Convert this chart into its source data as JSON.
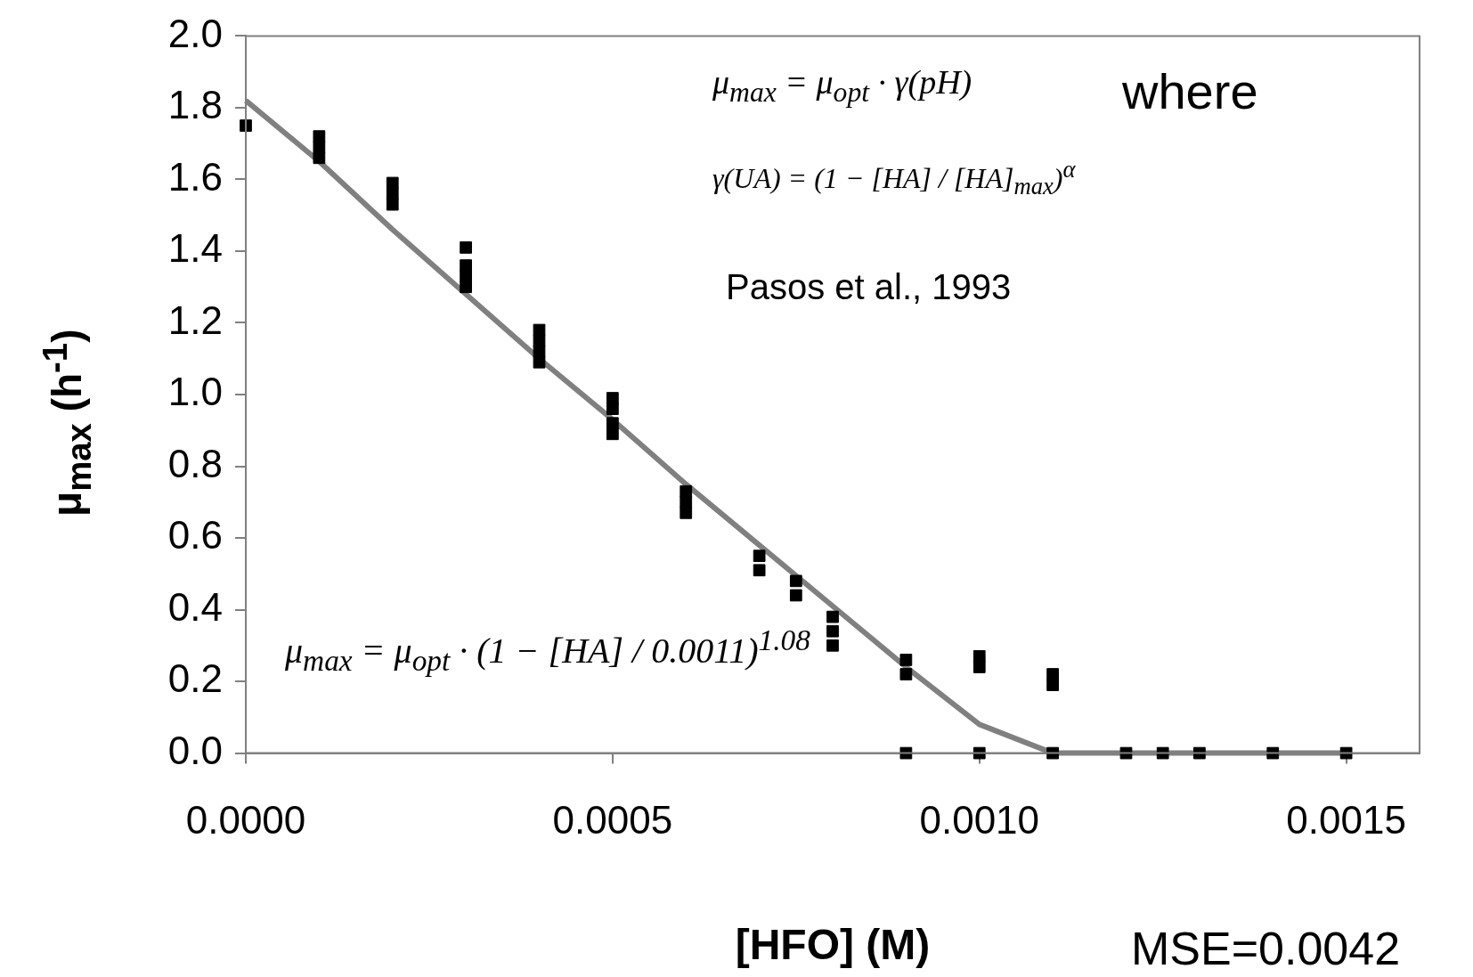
{
  "chart_data": {
    "type": "scatter",
    "xlabel": "[HFO] (M)",
    "ylabel": "μ$_{max}$ (h$^{-1}$)",
    "xlim": [
      0,
      0.0016
    ],
    "ylim": [
      0,
      2
    ],
    "xticks": [
      {
        "value": 0,
        "label": "0.0000"
      },
      {
        "value": 0.0005,
        "label": "0.0005"
      },
      {
        "value": 0.001,
        "label": "0.0010"
      },
      {
        "value": 0.0015,
        "label": "0.0015"
      }
    ],
    "yticks": [
      {
        "value": 0,
        "label": "0.0"
      },
      {
        "value": 0.2,
        "label": "0.2"
      },
      {
        "value": 0.4,
        "label": "0.4"
      },
      {
        "value": 0.6,
        "label": "0.6"
      },
      {
        "value": 0.8,
        "label": "0.8"
      },
      {
        "value": 1,
        "label": "1.0"
      },
      {
        "value": 1.2,
        "label": "1.2"
      },
      {
        "value": 1.4,
        "label": "1.4"
      },
      {
        "value": 1.6,
        "label": "1.6"
      },
      {
        "value": 1.8,
        "label": "1.8"
      },
      {
        "value": 2,
        "label": "2.0"
      }
    ],
    "grid": false,
    "legend": false,
    "series": [
      {
        "type": "line",
        "color": "#808080",
        "marker": "none",
        "line_style": "solid",
        "x": [
          0,
          0.0001,
          0.0002,
          0.0003,
          0.0004,
          0.0005,
          0.0006,
          0.0007,
          0.0008,
          0.0009,
          0.001,
          0.0011,
          0.0015
        ],
        "values": [
          1.82,
          1.65,
          1.46,
          1.28,
          1.1,
          0.93,
          0.75,
          0.58,
          0.41,
          0.24,
          0.08,
          0,
          0
        ]
      },
      {
        "color": "#000000",
        "marker": "square",
        "x": [
          0,
          0.0001,
          0.0001,
          0.0001,
          0.0002,
          0.0002,
          0.0002,
          0.0003,
          0.0003,
          0.0003,
          0.0003,
          0.0004,
          0.0004,
          0.0004,
          0.0004,
          0.0005,
          0.0005,
          0.0005,
          0.0005,
          0.0006,
          0.0006,
          0.0006,
          0.0007,
          0.0007,
          0.00075,
          0.00075,
          0.0008,
          0.0008,
          0.0008,
          0.0009,
          0.0009,
          0.0009,
          0.001,
          0.001,
          0.001,
          0.0011,
          0.0011,
          0.0011,
          0.0012,
          0.00125,
          0.0013,
          0.0014,
          0.0015
        ],
        "values": [
          1.75,
          1.66,
          1.69,
          1.72,
          1.53,
          1.56,
          1.59,
          1.41,
          1.3,
          1.33,
          1.36,
          1.09,
          1.12,
          1.15,
          1.18,
          0.89,
          0.92,
          0.96,
          0.99,
          0.67,
          0.7,
          0.73,
          0.51,
          0.55,
          0.44,
          0.48,
          0.3,
          0.34,
          0.38,
          0.22,
          0.26,
          0,
          0.24,
          0.27,
          0,
          0.19,
          0.22,
          0,
          0,
          0,
          0,
          0,
          0
        ]
      }
    ],
    "annotations": [
      "μ$_{max}$ = μ$_{opt}$ · γ(pH)",
      "where",
      "γ(UA) = (1 − [HA] / [HA]$_{max}$)$^{α}$",
      "Pasos et al., 1993",
      "μ$_{max}$ = μ$_{opt}$ · (1 − [HA] / 0.0011)$^{1.08}$",
      "MSE=0.0042"
    ]
  }
}
